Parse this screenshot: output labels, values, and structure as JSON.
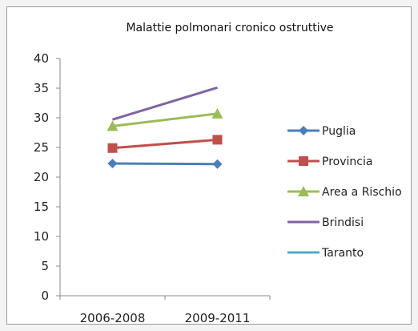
{
  "chart_data": {
    "type": "line",
    "title": "Malattie polmonari cronico ostruttive",
    "categories": [
      "2006-2008",
      "2009-2011"
    ],
    "ylim": [
      0,
      40
    ],
    "yticks": [
      0,
      5,
      10,
      15,
      20,
      25,
      30,
      35,
      40
    ],
    "grid": false,
    "legend_position": "right",
    "series": [
      {
        "name": "Puglia",
        "values": [
          22.3,
          22.2
        ],
        "color": "#4a7ebb",
        "marker": "diamond"
      },
      {
        "name": "Provincia",
        "values": [
          24.9,
          26.3
        ],
        "color": "#c0504d",
        "marker": "square"
      },
      {
        "name": "Area a Rischio",
        "values": [
          28.6,
          30.7
        ],
        "color": "#9bbb59",
        "marker": "triangle"
      },
      {
        "name": "Brindisi",
        "values": [
          29.7,
          35.1
        ],
        "color": "#8064a2",
        "marker": "none"
      },
      {
        "name": "Taranto",
        "values": [
          null,
          null
        ],
        "color": "#4bacc6",
        "marker": "none"
      }
    ]
  }
}
